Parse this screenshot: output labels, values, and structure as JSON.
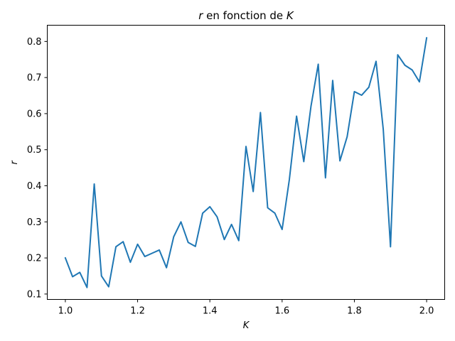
{
  "chart_data": {
    "type": "line",
    "title_var": "r",
    "title_rest": " en fonction de ",
    "title_var2": "K",
    "xlabel": "K",
    "ylabel": "r",
    "xlim": [
      0.95,
      2.05
    ],
    "ylim": [
      0.085,
      0.845
    ],
    "xticks": [
      1.0,
      1.2,
      1.4,
      1.6,
      1.8,
      2.0
    ],
    "xtick_labels": [
      "1.0",
      "1.2",
      "1.4",
      "1.6",
      "1.8",
      "2.0"
    ],
    "yticks": [
      0.1,
      0.2,
      0.3,
      0.4,
      0.5,
      0.6,
      0.7,
      0.8
    ],
    "ytick_labels": [
      "0.1",
      "0.2",
      "0.3",
      "0.4",
      "0.5",
      "0.6",
      "0.7",
      "0.8"
    ],
    "grid": false,
    "line_color": "#1f77b4",
    "series": [
      {
        "x": [
          1.0,
          1.02,
          1.04,
          1.06,
          1.08,
          1.1,
          1.12,
          1.14,
          1.16,
          1.18,
          1.2,
          1.22,
          1.24,
          1.26,
          1.28,
          1.3,
          1.32,
          1.34,
          1.36,
          1.38,
          1.4,
          1.42,
          1.44,
          1.46,
          1.48,
          1.5,
          1.52,
          1.54,
          1.56,
          1.58,
          1.6,
          1.62,
          1.64,
          1.66,
          1.68,
          1.7,
          1.72,
          1.74,
          1.76,
          1.78,
          1.8,
          1.82,
          1.84,
          1.86,
          1.88,
          1.9,
          1.92,
          1.94,
          1.96,
          1.98,
          2.0
        ],
        "values": [
          0.2,
          0.148,
          0.16,
          0.118,
          0.405,
          0.15,
          0.12,
          0.231,
          0.245,
          0.188,
          0.238,
          0.204,
          0.213,
          0.222,
          0.173,
          0.259,
          0.3,
          0.243,
          0.232,
          0.324,
          0.342,
          0.314,
          0.251,
          0.293,
          0.248,
          0.509,
          0.384,
          0.603,
          0.339,
          0.324,
          0.279,
          0.417,
          0.593,
          0.467,
          0.621,
          0.737,
          0.422,
          0.692,
          0.469,
          0.536,
          0.661,
          0.651,
          0.673,
          0.745,
          0.556,
          0.231,
          0.763,
          0.734,
          0.721,
          0.688,
          0.81
        ]
      }
    ]
  }
}
